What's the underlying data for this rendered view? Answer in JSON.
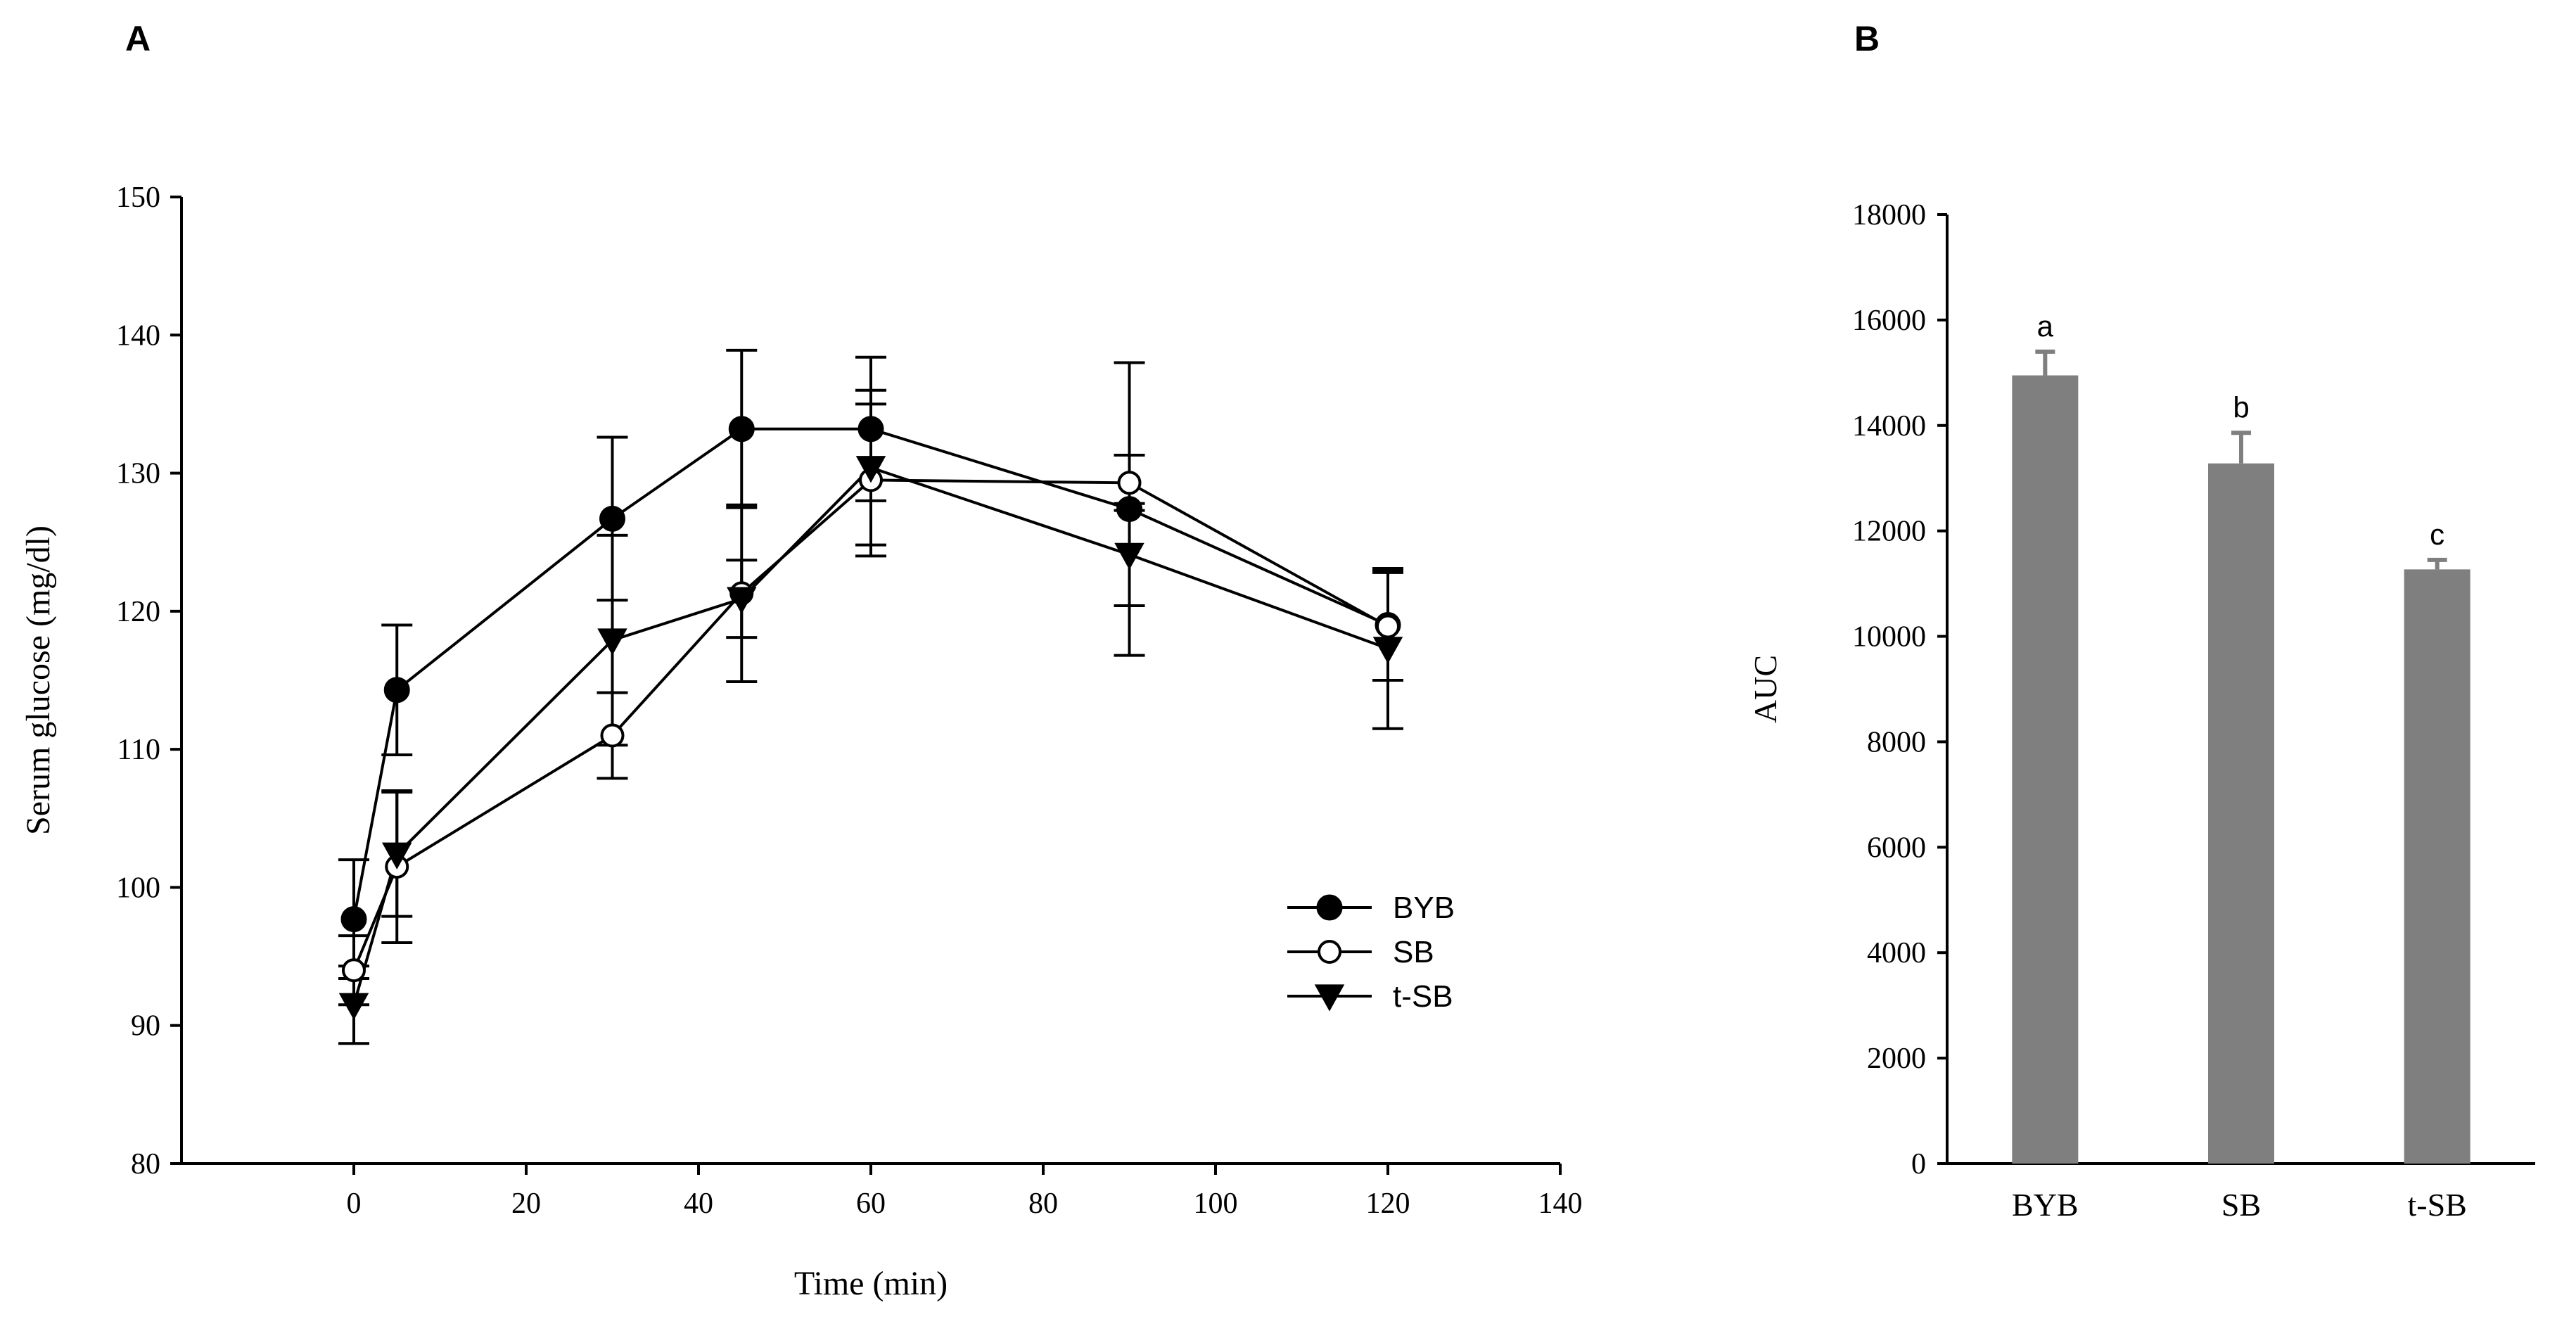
{
  "panels": {
    "a_label": "A",
    "b_label": "B"
  },
  "chart_data": [
    {
      "type": "line",
      "panel": "A",
      "xlabel": "Time (min)",
      "ylabel": "Serum glucose (mg/dl)",
      "xlim": [
        -20,
        140
      ],
      "ylim": [
        80,
        150
      ],
      "xticks": [
        0,
        20,
        40,
        60,
        80,
        100,
        120,
        140
      ],
      "yticks": [
        80,
        90,
        100,
        110,
        120,
        130,
        140,
        150
      ],
      "legend_position": "bottom-right",
      "series": [
        {
          "name": "BYB",
          "marker": "filled-circle",
          "x": [
            0,
            5,
            30,
            45,
            60,
            90,
            120
          ],
          "y": [
            97.7,
            114.3,
            126.7,
            133.2,
            133.2,
            127.4,
            119.0
          ],
          "err": [
            4.3,
            4.7,
            5.9,
            5.7,
            5.2,
            10.6,
            4.0
          ]
        },
        {
          "name": "SB",
          "marker": "open-circle",
          "x": [
            0,
            5,
            30,
            45,
            60,
            90,
            120
          ],
          "y": [
            94.0,
            101.5,
            111.0,
            121.3,
            129.5,
            129.3,
            118.9
          ],
          "err": [
            2.5,
            5.5,
            3.1,
            6.4,
            5.5,
            2.0,
            3.9
          ]
        },
        {
          "name": "t-SB",
          "marker": "filled-triangle-down",
          "x": [
            0,
            5,
            30,
            45,
            60,
            90,
            120
          ],
          "y": [
            91.5,
            102.4,
            117.9,
            120.9,
            130.4,
            124.1,
            117.3
          ],
          "err": [
            2.8,
            4.5,
            7.6,
            2.8,
            5.6,
            3.7,
            5.8
          ]
        }
      ]
    },
    {
      "type": "bar",
      "panel": "B",
      "xlabel": "",
      "ylabel": "AUC",
      "ylim": [
        0,
        18000
      ],
      "yticks": [
        0,
        2000,
        4000,
        6000,
        8000,
        10000,
        12000,
        14000,
        16000,
        18000
      ],
      "categories": [
        "BYB",
        "SB",
        "t-SB"
      ],
      "values": [
        14950,
        13280,
        11270
      ],
      "errors": [
        450,
        580,
        180
      ],
      "significance_labels": [
        "a",
        "b",
        "c"
      ],
      "bar_color": "#7f7f7f"
    }
  ]
}
